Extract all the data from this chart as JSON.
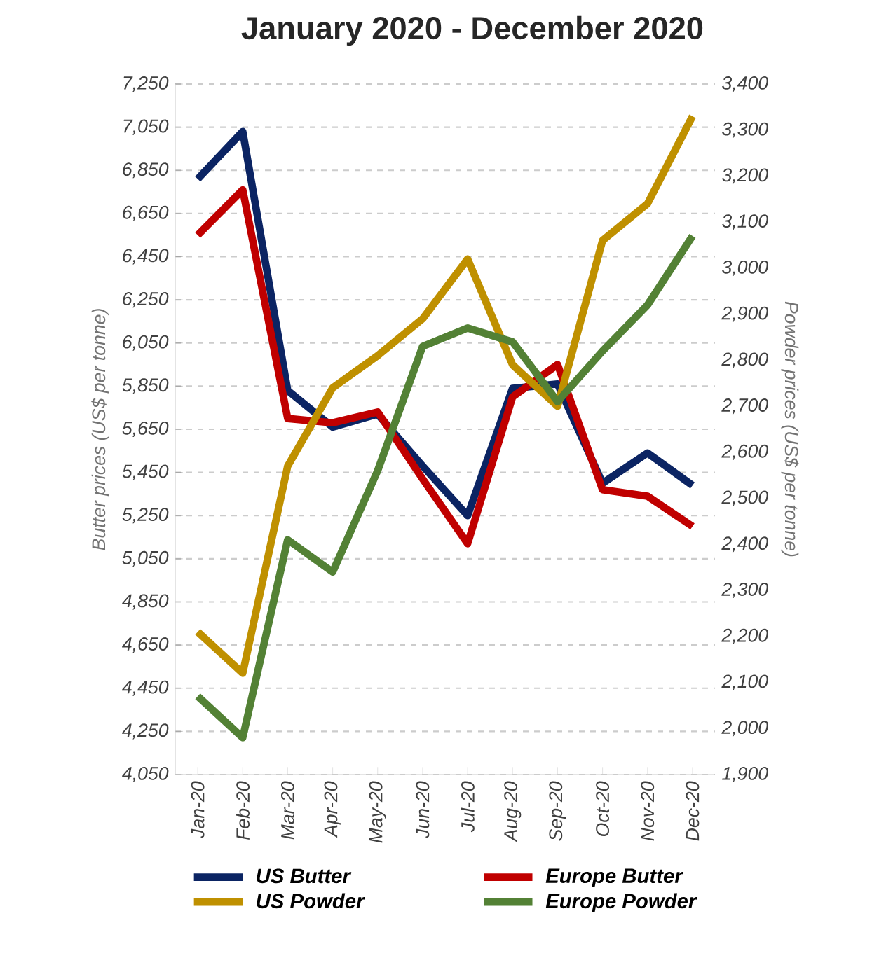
{
  "chart_data": {
    "type": "line",
    "title": "January 2020 - December 2020",
    "ylabel": "Butter prices (US$ per tonne)",
    "y2label": "Powder prices (US$ per tonne)",
    "categories": [
      "Jan-20",
      "Feb-20",
      "Mar-20",
      "Apr-20",
      "May-20",
      "Jun-20",
      "Jul-20",
      "Aug-20",
      "Sep-20",
      "Oct-20",
      "Nov-20",
      "Dec-20"
    ],
    "series": [
      {
        "name": "US Butter",
        "color": "#0b2463",
        "values": [
          6810,
          7030,
          5830,
          5660,
          5720,
          5480,
          5250,
          5840,
          5860,
          5400,
          5540,
          5390
        ]
      },
      {
        "name": "Europe Butter",
        "color": "#c00000",
        "values": [
          6550,
          6760,
          5700,
          5680,
          5730,
          5420,
          5120,
          5800,
          5950,
          5370,
          5340,
          5200
        ]
      },
      {
        "name": "US Powder",
        "color": "#bf9000",
        "axis": "y2",
        "values": [
          2210,
          2120,
          2570,
          2740,
          2810,
          2890,
          3020,
          2790,
          2700,
          3060,
          3140,
          3330
        ]
      },
      {
        "name": "Europe Powder",
        "color": "#538135",
        "axis": "y2",
        "values": [
          2070,
          1980,
          2410,
          2340,
          2560,
          2830,
          2870,
          2840,
          2710,
          2820,
          2920,
          3070
        ]
      }
    ],
    "ylim": [
      4050,
      7250
    ],
    "yticks": [
      {
        "value": 4050,
        "label": "4,050"
      },
      {
        "value": 4250,
        "label": "4,250"
      },
      {
        "value": 4450,
        "label": "4,450"
      },
      {
        "value": 4650,
        "label": "4,650"
      },
      {
        "value": 4850,
        "label": "4,850"
      },
      {
        "value": 5050,
        "label": "5,050"
      },
      {
        "value": 5250,
        "label": "5,250"
      },
      {
        "value": 5450,
        "label": "5,450"
      },
      {
        "value": 5650,
        "label": "5,650"
      },
      {
        "value": 5850,
        "label": "5,850"
      },
      {
        "value": 6050,
        "label": "6,050"
      },
      {
        "value": 6250,
        "label": "6,250"
      },
      {
        "value": 6450,
        "label": "6,450"
      },
      {
        "value": 6650,
        "label": "6,650"
      },
      {
        "value": 6850,
        "label": "6,850"
      },
      {
        "value": 7050,
        "label": "7,050"
      },
      {
        "value": 7250,
        "label": "7,250"
      }
    ],
    "y2lim": [
      1900,
      3400
    ],
    "y2ticks": [
      {
        "value": 1900,
        "label": "1,900"
      },
      {
        "value": 2000,
        "label": "2,000"
      },
      {
        "value": 2100,
        "label": "2,100"
      },
      {
        "value": 2200,
        "label": "2,200"
      },
      {
        "value": 2300,
        "label": "2,300"
      },
      {
        "value": 2400,
        "label": "2,400"
      },
      {
        "value": 2500,
        "label": "2,500"
      },
      {
        "value": 2600,
        "label": "2,600"
      },
      {
        "value": 2700,
        "label": "2,700"
      },
      {
        "value": 2800,
        "label": "2,800"
      },
      {
        "value": 2900,
        "label": "2,900"
      },
      {
        "value": 3000,
        "label": "3,000"
      },
      {
        "value": 3100,
        "label": "3,100"
      },
      {
        "value": 3200,
        "label": "3,200"
      },
      {
        "value": 3300,
        "label": "3,300"
      },
      {
        "value": 3400,
        "label": "3,400"
      }
    ],
    "grid": "y",
    "legend": "bottom",
    "marker": "none",
    "line_style": "solid"
  }
}
